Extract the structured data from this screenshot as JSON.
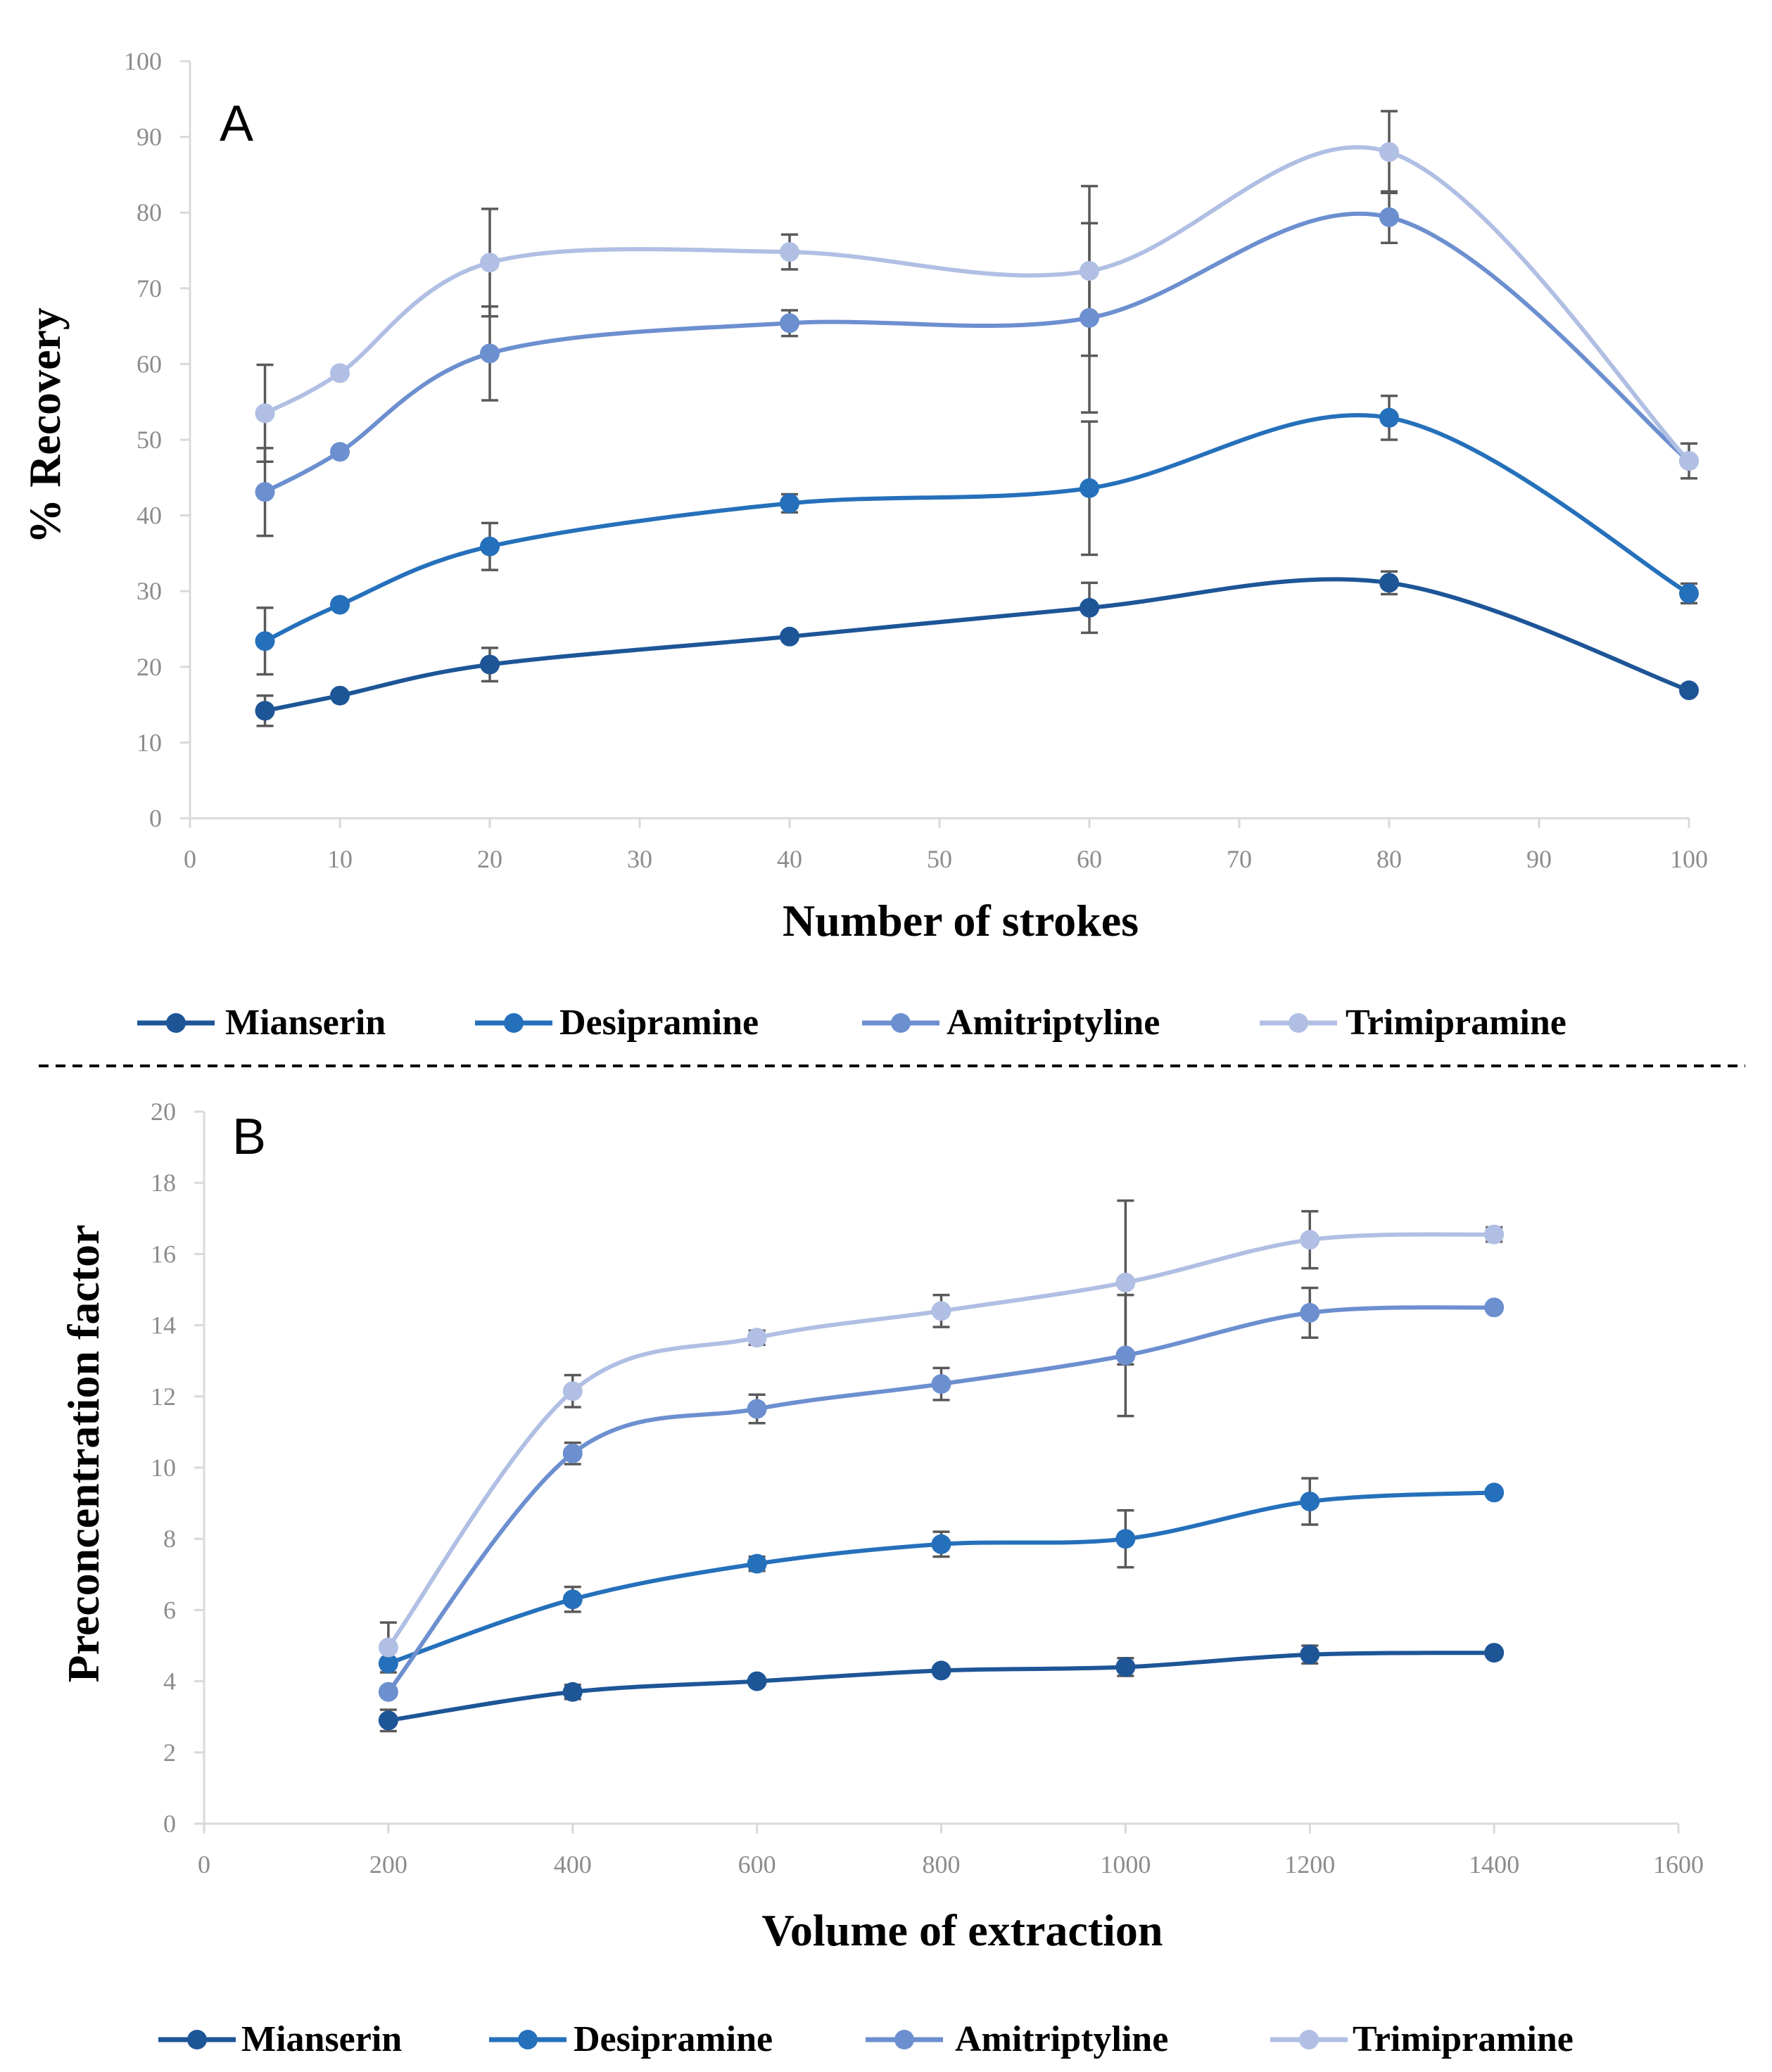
{
  "divider_style": "dashed",
  "chart_data": [
    {
      "type": "line",
      "panel_label": "A",
      "xlabel": "Number of strokes",
      "ylabel": "% Recovery",
      "xlim": [
        0,
        100
      ],
      "ylim": [
        0,
        100
      ],
      "xticks": [
        0,
        10,
        20,
        30,
        40,
        50,
        60,
        70,
        80,
        90,
        100
      ],
      "yticks": [
        0,
        10,
        20,
        30,
        40,
        50,
        60,
        70,
        80,
        90,
        100
      ],
      "x": [
        5,
        10,
        20,
        40,
        60,
        80,
        100
      ],
      "legend_position": "bottom",
      "series": [
        {
          "name": "Mianserin",
          "color": "#1d5597",
          "values": [
            14.2,
            16.2,
            20.3,
            24.0,
            27.8,
            31.1,
            16.9
          ],
          "errors": [
            2.0,
            0.0,
            2.2,
            0.0,
            3.3,
            1.5,
            0.0
          ]
        },
        {
          "name": "Desipramine",
          "color": "#2570bb",
          "values": [
            23.4,
            28.2,
            35.9,
            41.6,
            43.6,
            52.9,
            29.7
          ],
          "errors": [
            4.4,
            0.0,
            3.1,
            1.2,
            8.8,
            2.9,
            1.3
          ]
        },
        {
          "name": "Amitriptyline",
          "color": "#6c8fcf",
          "values": [
            43.1,
            48.4,
            61.4,
            65.4,
            66.1,
            79.4,
            47.2
          ],
          "errors": [
            5.8,
            0.0,
            6.2,
            1.7,
            12.5,
            3.4,
            0.0
          ]
        },
        {
          "name": "Trimipramine",
          "color": "#b0bfe3",
          "values": [
            53.5,
            58.8,
            73.4,
            74.8,
            72.3,
            88.0,
            47.2
          ],
          "errors": [
            6.4,
            0.0,
            7.1,
            2.3,
            11.2,
            5.4,
            2.3
          ]
        }
      ]
    },
    {
      "type": "line",
      "panel_label": "B",
      "xlabel": "Volume of extraction",
      "ylabel": "Preconcentration factor",
      "xlim": [
        0,
        1600
      ],
      "ylim": [
        0,
        20
      ],
      "xticks": [
        0,
        200,
        400,
        600,
        800,
        1000,
        1200,
        1400,
        1600
      ],
      "yticks": [
        0,
        2,
        4,
        6,
        8,
        10,
        12,
        14,
        16,
        18,
        20
      ],
      "x": [
        200,
        400,
        600,
        800,
        1000,
        1200,
        1400
      ],
      "legend_position": "bottom",
      "series": [
        {
          "name": "Mianserin",
          "color": "#1d5597",
          "values": [
            2.9,
            3.7,
            4.0,
            4.3,
            4.4,
            4.75,
            4.8
          ],
          "errors": [
            0.3,
            0.2,
            0.0,
            0.0,
            0.25,
            0.25,
            0.0
          ]
        },
        {
          "name": "Desipramine",
          "color": "#2570bb",
          "values": [
            4.5,
            6.3,
            7.3,
            7.85,
            8.0,
            9.05,
            9.3
          ],
          "errors": [
            0.0,
            0.35,
            0.2,
            0.35,
            0.8,
            0.65,
            0.0
          ]
        },
        {
          "name": "Amitriptyline",
          "color": "#6c8fcf",
          "values": [
            3.7,
            10.4,
            11.65,
            12.35,
            13.15,
            14.35,
            14.5
          ],
          "errors": [
            0.0,
            0.3,
            0.4,
            0.45,
            1.7,
            0.7,
            0.0
          ]
        },
        {
          "name": "Trimipramine",
          "color": "#b0bfe3",
          "values": [
            4.95,
            12.15,
            13.65,
            14.4,
            15.2,
            16.4,
            16.55
          ],
          "errors": [
            0.7,
            0.45,
            0.2,
            0.45,
            2.3,
            0.8,
            0.2
          ]
        }
      ]
    }
  ]
}
